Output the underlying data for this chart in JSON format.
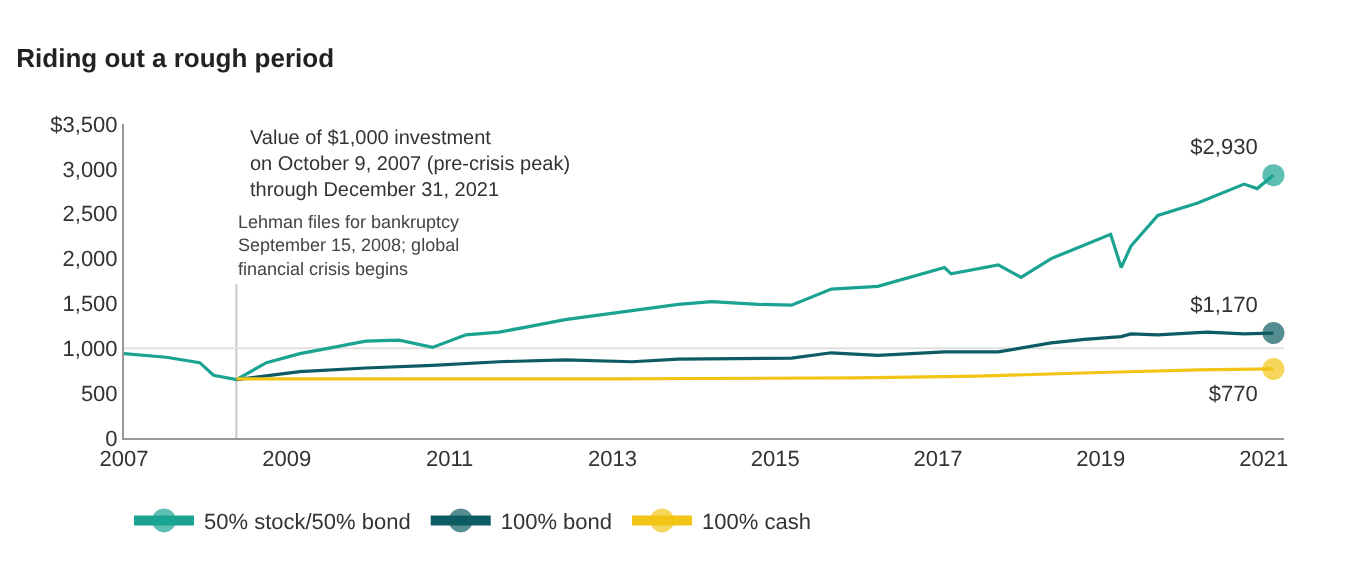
{
  "chart_data": {
    "type": "line",
    "title": "Riding out a rough period",
    "xlim": [
      2007,
      2021.25
    ],
    "xticks": [
      2007,
      2009,
      2011,
      2013,
      2015,
      2017,
      2019,
      2021
    ],
    "ylim": [
      0,
      3500
    ],
    "yticks": [
      0,
      {
        "value": 500,
        "label": "500"
      },
      {
        "value": 1000,
        "label": "1,000"
      },
      {
        "value": 1500,
        "label": "1,500"
      },
      {
        "value": 2000,
        "label": "2,000"
      },
      {
        "value": 2500,
        "label": "2,500"
      },
      {
        "value": 3000,
        "label": "3,000"
      },
      {
        "value": 3500,
        "label": "$3,500"
      }
    ],
    "grid": false,
    "legend": "bottom left",
    "series": [
      {
        "name": "50% stock/50% bond",
        "color": "#1aa391",
        "x": [
          2007.0,
          2007.52,
          2007.93,
          2008.1,
          2008.38,
          2008.75,
          2009.16,
          2009.57,
          2009.97,
          2010.38,
          2010.79,
          2011.2,
          2011.61,
          2012.02,
          2012.42,
          2012.83,
          2013.24,
          2013.81,
          2014.22,
          2014.79,
          2015.2,
          2015.69,
          2016.26,
          2017.08,
          2017.16,
          2017.74,
          2018.02,
          2018.39,
          2019.12,
          2019.25,
          2019.37,
          2019.7,
          2020.19,
          2020.76,
          2020.92,
          2021.12
        ],
        "values": [
          940,
          900,
          840,
          700,
          650,
          840,
          940,
          1010,
          1080,
          1090,
          1010,
          1150,
          1180,
          1250,
          1320,
          1370,
          1420,
          1490,
          1520,
          1490,
          1480,
          1660,
          1690,
          1900,
          1830,
          1930,
          1790,
          2000,
          2270,
          1900,
          2140,
          2480,
          2620,
          2830,
          2780,
          2930
        ],
        "value_labels": [
          null,
          null,
          null,
          null,
          null,
          null,
          null,
          null,
          null,
          null,
          null,
          null,
          null,
          null,
          null,
          null,
          null,
          null,
          null,
          null,
          null,
          null,
          null,
          null,
          null,
          null,
          null,
          null,
          null,
          null,
          null,
          null,
          null,
          null,
          null,
          "$2,930"
        ]
      },
      {
        "name": "100% bond",
        "color": "#0d5c63",
        "x": [
          2008.38,
          2009.16,
          2009.97,
          2010.79,
          2011.61,
          2012.42,
          2013.24,
          2013.81,
          2015.2,
          2015.69,
          2016.26,
          2017.08,
          2017.74,
          2018.39,
          2018.8,
          2019.25,
          2019.37,
          2019.7,
          2020.3,
          2020.76,
          2021.12
        ],
        "values": [
          650,
          740,
          780,
          810,
          850,
          870,
          850,
          880,
          890,
          950,
          920,
          960,
          960,
          1060,
          1100,
          1130,
          1160,
          1150,
          1180,
          1160,
          1170
        ],
        "value_labels": [
          null,
          null,
          null,
          null,
          null,
          null,
          null,
          null,
          null,
          null,
          null,
          null,
          null,
          null,
          null,
          null,
          null,
          null,
          null,
          null,
          "$1,170"
        ]
      },
      {
        "name": "100% cash",
        "color": "#f2c416",
        "x": [
          2008.38,
          2010.0,
          2013.0,
          2016.0,
          2017.5,
          2019.0,
          2020.2,
          2021.12
        ],
        "values": [
          660,
          660,
          660,
          670,
          690,
          730,
          760,
          770
        ],
        "value_labels": [
          null,
          null,
          null,
          null,
          null,
          null,
          null,
          "$770"
        ]
      }
    ],
    "ref_lines": [
      {
        "axis": "x",
        "value": 2008.38,
        "label": "Lehman files for bankruptcy\nSeptember 15, 2008; global\nfinancial crisis begins",
        "color": "#c8c8c8"
      },
      {
        "axis": "y",
        "value": 1000,
        "color": "#e0e0e0"
      }
    ],
    "annotations": [
      "Value of $1,000 investment\non October 9, 2007 (pre-crisis peak)\nthrough December 31, 2021"
    ]
  }
}
